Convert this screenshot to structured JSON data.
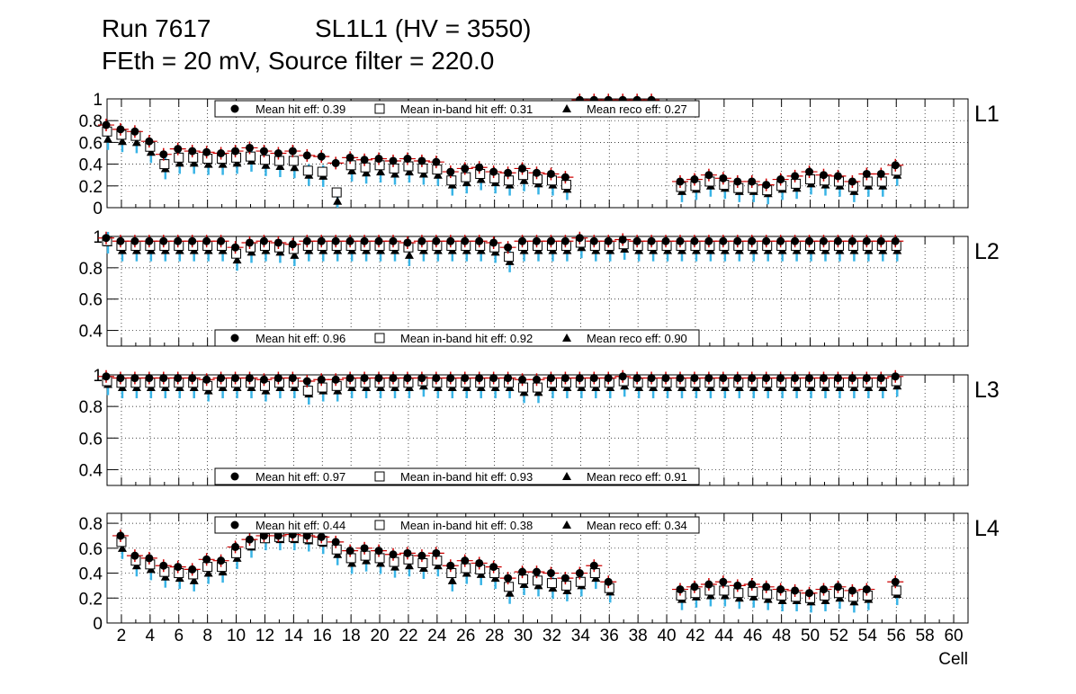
{
  "header": {
    "run": "Run 7617",
    "superlayer": "SL1L1 (HV = 3550)",
    "conditions": "FEth = 20 mV, Source filter = 220.0"
  },
  "colors": {
    "hit": "#000000",
    "inband_err": "#0000cc",
    "reco_err": "#39b4e6",
    "hit_err": "#cc0000",
    "grid": "#000000"
  },
  "chart_data": [
    {
      "type": "scatter",
      "layer": "L1",
      "xlabel": "Cell",
      "xlim": [
        1,
        61
      ],
      "ylim": [
        0,
        1
      ],
      "yticks": [
        "0",
        "0.2",
        "0.4",
        "0.6",
        "0.8",
        "1"
      ],
      "legend": {
        "position": "top-center",
        "hit": "Mean hit  eff: 0.39",
        "inband": "Mean in-band hit eff: 0.31",
        "reco": "Mean reco eff: 0.27"
      },
      "series": [
        {
          "name": "hit",
          "marker": "circle",
          "values": [
            0.76,
            0.72,
            0.7,
            0.61,
            0.49,
            0.54,
            0.52,
            0.51,
            0.5,
            0.52,
            0.55,
            0.52,
            0.5,
            0.52,
            0.48,
            0.47,
            0.41,
            0.46,
            0.44,
            0.45,
            0.43,
            0.45,
            0.43,
            0.42,
            0.33,
            0.36,
            0.37,
            0.33,
            0.32,
            0.36,
            0.32,
            0.31,
            0.28,
            0.99,
            0.99,
            0.99,
            0.99,
            0.99,
            0.99,
            null,
            0.24,
            0.26,
            0.3,
            0.27,
            0.24,
            0.24,
            0.21,
            0.26,
            0.29,
            0.33,
            0.3,
            0.29,
            0.24,
            0.31,
            0.31,
            0.39
          ]
        },
        {
          "name": "inband",
          "marker": "square",
          "values": [
            0.7,
            0.67,
            0.66,
            0.56,
            0.4,
            0.46,
            0.46,
            0.45,
            0.45,
            0.46,
            0.47,
            0.44,
            0.43,
            0.43,
            0.34,
            0.33,
            0.14,
            0.39,
            0.37,
            0.39,
            0.36,
            0.38,
            0.36,
            0.35,
            0.25,
            0.28,
            0.31,
            0.27,
            0.25,
            0.3,
            0.26,
            0.25,
            0.21,
            null,
            null,
            null,
            null,
            null,
            null,
            null,
            0.19,
            0.2,
            0.24,
            0.21,
            0.18,
            0.18,
            0.16,
            0.2,
            0.22,
            0.26,
            0.25,
            0.24,
            0.19,
            0.24,
            0.24,
            0.34
          ]
        },
        {
          "name": "reco",
          "marker": "triangle",
          "values": [
            0.63,
            0.61,
            0.6,
            0.51,
            0.36,
            0.41,
            0.41,
            0.4,
            0.4,
            0.41,
            0.43,
            0.39,
            0.38,
            0.37,
            0.3,
            0.29,
            0.06,
            0.34,
            0.32,
            0.33,
            0.31,
            0.33,
            0.31,
            0.3,
            0.21,
            0.23,
            0.26,
            0.23,
            0.21,
            0.25,
            0.22,
            0.21,
            0.17,
            null,
            null,
            null,
            null,
            null,
            null,
            null,
            0.15,
            0.17,
            0.2,
            0.18,
            0.15,
            0.15,
            0.13,
            0.17,
            0.18,
            0.22,
            0.21,
            0.2,
            0.15,
            0.2,
            0.2,
            0.3
          ]
        }
      ]
    },
    {
      "type": "scatter",
      "layer": "L2",
      "xlabel": "Cell",
      "xlim": [
        1,
        61
      ],
      "ylim": [
        0.3,
        1
      ],
      "yticks": [
        "0.4",
        "0.6",
        "0.8",
        "1"
      ],
      "legend": {
        "position": "bottom-center",
        "hit": "Mean hit  eff: 0.96",
        "inband": "Mean in-band hit eff: 0.92",
        "reco": "Mean reco eff: 0.90"
      },
      "series": [
        {
          "name": "hit",
          "marker": "circle",
          "values": [
            0.99,
            0.97,
            0.97,
            0.97,
            0.97,
            0.97,
            0.97,
            0.97,
            0.97,
            0.93,
            0.96,
            0.97,
            0.96,
            0.95,
            0.97,
            0.97,
            0.97,
            0.97,
            0.97,
            0.97,
            0.97,
            0.96,
            0.97,
            0.97,
            0.97,
            0.97,
            0.97,
            0.96,
            0.93,
            0.97,
            0.97,
            0.97,
            0.97,
            0.99,
            0.97,
            0.97,
            0.98,
            0.97,
            0.97,
            0.97,
            0.97,
            0.97,
            0.97,
            0.97,
            0.97,
            0.97,
            0.97,
            0.97,
            0.97,
            0.97,
            0.97,
            0.97,
            0.97,
            0.97,
            0.97,
            0.97
          ]
        },
        {
          "name": "inband",
          "marker": "square",
          "values": [
            0.97,
            0.94,
            0.94,
            0.94,
            0.94,
            0.94,
            0.94,
            0.94,
            0.94,
            0.89,
            0.93,
            0.94,
            0.93,
            0.92,
            0.94,
            0.94,
            0.94,
            0.94,
            0.94,
            0.94,
            0.94,
            0.93,
            0.94,
            0.94,
            0.94,
            0.94,
            0.94,
            0.93,
            0.87,
            0.94,
            0.94,
            0.94,
            0.94,
            0.96,
            0.94,
            0.94,
            0.95,
            0.94,
            0.94,
            0.94,
            0.94,
            0.94,
            0.94,
            0.94,
            0.94,
            0.94,
            0.94,
            0.94,
            0.94,
            0.94,
            0.94,
            0.94,
            0.94,
            0.94,
            0.94,
            0.94
          ]
        },
        {
          "name": "reco",
          "marker": "triangle",
          "values": [
            0.96,
            0.91,
            0.91,
            0.91,
            0.91,
            0.91,
            0.91,
            0.91,
            0.91,
            0.85,
            0.9,
            0.91,
            0.9,
            0.88,
            0.91,
            0.91,
            0.91,
            0.91,
            0.91,
            0.91,
            0.91,
            0.88,
            0.91,
            0.91,
            0.91,
            0.91,
            0.91,
            0.9,
            0.84,
            0.91,
            0.91,
            0.91,
            0.91,
            0.93,
            0.91,
            0.91,
            0.92,
            0.91,
            0.91,
            0.91,
            0.91,
            0.91,
            0.91,
            0.91,
            0.91,
            0.91,
            0.91,
            0.91,
            0.91,
            0.91,
            0.91,
            0.91,
            0.91,
            0.91,
            0.91,
            0.91
          ]
        }
      ]
    },
    {
      "type": "scatter",
      "layer": "L3",
      "xlabel": "Cell",
      "xlim": [
        1,
        61
      ],
      "ylim": [
        0.3,
        1
      ],
      "yticks": [
        "0.4",
        "0.6",
        "0.8",
        "1"
      ],
      "legend": {
        "position": "bottom-center",
        "hit": "Mean hit  eff: 0.97",
        "inband": "Mean in-band hit eff: 0.93",
        "reco": "Mean reco eff: 0.91"
      },
      "series": [
        {
          "name": "hit",
          "marker": "circle",
          "values": [
            0.99,
            0.98,
            0.98,
            0.98,
            0.98,
            0.98,
            0.98,
            0.97,
            0.98,
            0.98,
            0.98,
            0.97,
            0.98,
            0.98,
            0.96,
            0.97,
            0.97,
            0.98,
            0.98,
            0.98,
            0.98,
            0.98,
            0.98,
            0.98,
            0.98,
            0.98,
            0.98,
            0.98,
            0.98,
            0.97,
            0.97,
            0.98,
            0.98,
            0.98,
            0.98,
            0.98,
            0.99,
            0.98,
            0.98,
            0.98,
            0.98,
            0.98,
            0.98,
            0.98,
            0.98,
            0.98,
            0.98,
            0.98,
            0.98,
            0.98,
            0.98,
            0.98,
            0.98,
            0.98,
            0.98,
            0.99
          ]
        },
        {
          "name": "inband",
          "marker": "square",
          "values": [
            0.96,
            0.95,
            0.95,
            0.95,
            0.95,
            0.95,
            0.95,
            0.93,
            0.95,
            0.95,
            0.95,
            0.93,
            0.95,
            0.95,
            0.9,
            0.92,
            0.93,
            0.95,
            0.95,
            0.95,
            0.95,
            0.95,
            0.96,
            0.95,
            0.95,
            0.95,
            0.95,
            0.95,
            0.95,
            0.92,
            0.92,
            0.95,
            0.95,
            0.95,
            0.95,
            0.95,
            0.96,
            0.95,
            0.95,
            0.95,
            0.95,
            0.95,
            0.95,
            0.95,
            0.95,
            0.95,
            0.95,
            0.95,
            0.95,
            0.95,
            0.95,
            0.95,
            0.95,
            0.95,
            0.95,
            0.96
          ]
        },
        {
          "name": "reco",
          "marker": "triangle",
          "values": [
            0.94,
            0.92,
            0.92,
            0.92,
            0.92,
            0.92,
            0.92,
            0.9,
            0.92,
            0.92,
            0.92,
            0.9,
            0.92,
            0.92,
            0.88,
            0.9,
            0.9,
            0.92,
            0.92,
            0.92,
            0.92,
            0.92,
            0.93,
            0.92,
            0.92,
            0.92,
            0.92,
            0.92,
            0.92,
            0.89,
            0.89,
            0.92,
            0.92,
            0.92,
            0.92,
            0.92,
            0.93,
            0.92,
            0.92,
            0.92,
            0.92,
            0.92,
            0.92,
            0.92,
            0.92,
            0.92,
            0.92,
            0.92,
            0.92,
            0.92,
            0.92,
            0.92,
            0.92,
            0.92,
            0.92,
            0.93
          ]
        }
      ]
    },
    {
      "type": "scatter",
      "layer": "L4",
      "xlabel": "Cell",
      "xlim": [
        1,
        61
      ],
      "ylim": [
        0,
        0.88
      ],
      "yticks": [
        "0",
        "0.2",
        "0.4",
        "0.6",
        "0.8"
      ],
      "xticks": [
        "2",
        "4",
        "6",
        "8",
        "10",
        "12",
        "14",
        "16",
        "18",
        "20",
        "22",
        "24",
        "26",
        "28",
        "30",
        "32",
        "34",
        "36",
        "38",
        "40",
        "42",
        "44",
        "46",
        "48",
        "50",
        "52",
        "54",
        "56",
        "58",
        "60"
      ],
      "legend": {
        "position": "top-center",
        "hit": "Mean hit  eff: 0.44",
        "inband": "Mean in-band hit eff: 0.38",
        "reco": "Mean reco eff: 0.34"
      },
      "series": [
        {
          "name": "hit",
          "marker": "circle",
          "values": [
            null,
            0.7,
            0.54,
            0.52,
            0.46,
            0.45,
            0.43,
            0.51,
            0.5,
            0.61,
            0.67,
            0.7,
            0.7,
            0.71,
            0.7,
            0.69,
            0.65,
            0.58,
            0.6,
            0.58,
            0.55,
            0.56,
            0.54,
            0.56,
            0.46,
            0.5,
            0.48,
            0.45,
            0.36,
            0.41,
            0.41,
            0.4,
            0.36,
            0.4,
            0.46,
            0.33,
            null,
            null,
            null,
            null,
            0.27,
            0.29,
            0.31,
            0.33,
            0.3,
            0.31,
            0.29,
            0.27,
            0.26,
            0.24,
            0.27,
            0.29,
            0.26,
            0.27,
            null,
            0.33
          ]
        },
        {
          "name": "inband",
          "marker": "square",
          "values": [
            null,
            0.65,
            0.5,
            0.47,
            0.41,
            0.4,
            0.39,
            0.45,
            0.45,
            0.56,
            0.63,
            0.68,
            0.69,
            0.69,
            0.68,
            0.66,
            0.59,
            0.52,
            0.54,
            0.52,
            0.49,
            0.51,
            0.48,
            0.5,
            0.4,
            0.44,
            0.43,
            0.4,
            0.29,
            0.35,
            0.34,
            0.32,
            0.3,
            0.33,
            0.4,
            0.28,
            null,
            null,
            null,
            null,
            0.22,
            0.24,
            0.26,
            0.26,
            0.24,
            0.25,
            0.23,
            0.22,
            0.21,
            0.2,
            0.22,
            0.24,
            0.21,
            0.22,
            null,
            0.26
          ]
        },
        {
          "name": "reco",
          "marker": "triangle",
          "values": [
            null,
            0.6,
            0.46,
            0.43,
            0.37,
            0.36,
            0.34,
            0.4,
            0.41,
            0.52,
            0.61,
            0.67,
            0.67,
            0.67,
            0.66,
            0.64,
            0.55,
            0.48,
            0.5,
            0.48,
            0.45,
            0.46,
            0.44,
            0.46,
            0.34,
            0.4,
            0.39,
            0.36,
            0.24,
            0.31,
            0.3,
            0.28,
            0.26,
            0.3,
            0.36,
            0.25,
            null,
            null,
            null,
            null,
            0.19,
            0.21,
            0.22,
            0.22,
            0.2,
            0.21,
            0.19,
            0.18,
            0.18,
            0.17,
            0.18,
            0.2,
            0.17,
            0.19,
            null,
            0.23
          ]
        }
      ]
    }
  ]
}
